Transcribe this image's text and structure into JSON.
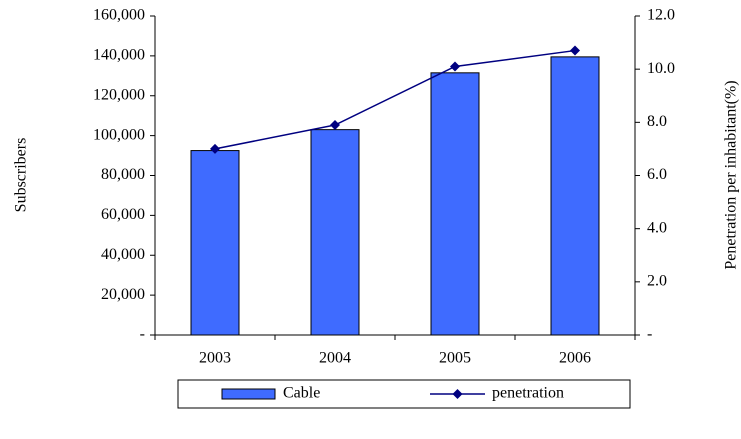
{
  "chart_data": {
    "type": "bar-line",
    "categories": [
      "2003",
      "2004",
      "2005",
      "2006"
    ],
    "series": [
      {
        "name": "Cable",
        "type": "bar",
        "color": "#3f6bff",
        "values": [
          92500,
          103000,
          131500,
          139500
        ]
      },
      {
        "name": "penetration",
        "type": "line",
        "axis": "y2",
        "color": "#000080",
        "values": [
          7.0,
          7.9,
          10.1,
          10.7
        ]
      }
    ],
    "ylabel": "Subscribers",
    "y2label": "Penetration per inhabitant(%)",
    "ylim": [
      0,
      160000
    ],
    "yticks": [
      {
        "value": 0,
        "label": "-"
      },
      {
        "value": 20000,
        "label": "20,000"
      },
      {
        "value": 40000,
        "label": "40,000"
      },
      {
        "value": 60000,
        "label": "60,000"
      },
      {
        "value": 80000,
        "label": "80,000"
      },
      {
        "value": 100000,
        "label": "100,000"
      },
      {
        "value": 120000,
        "label": "120,000"
      },
      {
        "value": 140000,
        "label": "140,000"
      },
      {
        "value": 160000,
        "label": "160,000"
      }
    ],
    "y2lim": [
      0,
      12
    ],
    "y2ticks": [
      {
        "value": 0,
        "label": "-"
      },
      {
        "value": 2,
        "label": "2.0"
      },
      {
        "value": 4,
        "label": "4.0"
      },
      {
        "value": 6,
        "label": "6.0"
      },
      {
        "value": 8,
        "label": "8.0"
      },
      {
        "value": 10,
        "label": "10.0"
      },
      {
        "value": 12,
        "label": "12.0"
      }
    ],
    "legend": "bottom"
  }
}
